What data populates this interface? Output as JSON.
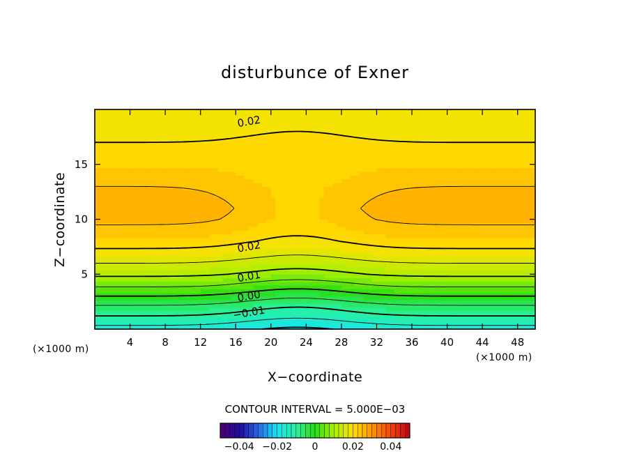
{
  "chart_data": {
    "type": "contour",
    "title": "disturbunce of Exner",
    "xlabel": "X−coordinate",
    "ylabel": "Z−coordinate",
    "x_unit_label": "(×1000 m)",
    "y_unit_label": "(×1000 m)",
    "xlim": [
      0,
      50
    ],
    "ylim": [
      0,
      20
    ],
    "x_ticks": [
      4,
      8,
      12,
      16,
      20,
      24,
      28,
      32,
      36,
      40,
      44,
      48
    ],
    "y_ticks": [
      5,
      10,
      15
    ],
    "x_tick_labels": [
      "4",
      "8",
      "12",
      "16",
      "20",
      "24",
      "28",
      "32",
      "36",
      "40",
      "44",
      "48"
    ],
    "y_tick_labels": [
      "5",
      "10",
      "15"
    ],
    "contour_interval_text": "CONTOUR INTERVAL = 5.000E−03",
    "contour_interval": 0.005,
    "contour_labels": [
      {
        "text": "0.02",
        "x": 17.5,
        "z": 18.9
      },
      {
        "text": "0.02",
        "x": 17.5,
        "z": 7.5
      },
      {
        "text": "0.01",
        "x": 17.5,
        "z": 4.8
      },
      {
        "text": "0.00",
        "x": 17.5,
        "z": 3.0
      },
      {
        "text": "−0.01",
        "x": 17.5,
        "z": 1.5
      }
    ],
    "field_profile": {
      "description": "disturbance of Exner vs height at edge columns (x=8 and x=42) and at center column (x=23)",
      "z": [
        0,
        1,
        2,
        3,
        4,
        5,
        6,
        7,
        8,
        9,
        10,
        11,
        12,
        13,
        14,
        15,
        16,
        17,
        18,
        19,
        20
      ],
      "edge_values": [
        -0.017,
        -0.011,
        -0.006,
        0.0,
        0.006,
        0.011,
        0.015,
        0.019,
        0.022,
        0.024,
        0.026,
        0.027,
        0.026,
        0.025,
        0.024,
        0.022,
        0.021,
        0.02,
        0.019,
        0.019,
        0.019
      ],
      "center_values": [
        -0.021,
        -0.015,
        -0.01,
        -0.004,
        0.002,
        0.008,
        0.012,
        0.016,
        0.019,
        0.021,
        0.022,
        0.022,
        0.022,
        0.022,
        0.021,
        0.021,
        0.021,
        0.021,
        0.02,
        0.02,
        0.02
      ]
    },
    "colorbar": {
      "min": -0.05,
      "max": 0.05,
      "tick_values": [
        -0.04,
        -0.02,
        0,
        0.02,
        0.04
      ],
      "tick_labels": [
        "−0.04",
        "−0.02",
        "0",
        "0.02",
        "0.04"
      ]
    }
  }
}
